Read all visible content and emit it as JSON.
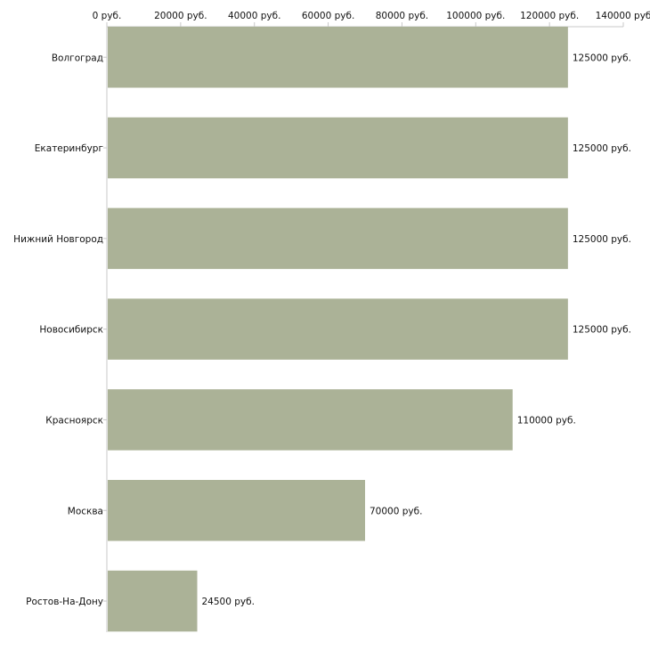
{
  "chart_data": {
    "type": "bar",
    "orientation": "horizontal",
    "title": "",
    "xlabel": "",
    "ylabel": "",
    "unit": "руб.",
    "xlim": [
      0,
      140000
    ],
    "x_ticks": [
      0,
      20000,
      40000,
      60000,
      80000,
      100000,
      120000,
      140000
    ],
    "x_tick_labels": [
      "0 руб.",
      "20000 руб.",
      "40000 руб.",
      "60000 руб.",
      "80000 руб.",
      "100000 руб.",
      "120000 руб.",
      "140000 руб"
    ],
    "categories": [
      "Волгоград",
      "Екатеринбург",
      "Нижний Новгород",
      "Новосибирск",
      "Красноярск",
      "Москва",
      "Ростов-На-Дону"
    ],
    "values": [
      125000,
      125000,
      125000,
      125000,
      110000,
      70000,
      24500
    ],
    "data_labels": [
      "125000 руб.",
      "125000 руб.",
      "125000 руб.",
      "125000 руб.",
      "110000 руб.",
      "70000 руб.",
      "24500 руб."
    ],
    "grid": false,
    "legend": "none",
    "colors": {
      "bar": "#abb297",
      "axis": "#c8c8c8",
      "text": "#111111"
    }
  }
}
